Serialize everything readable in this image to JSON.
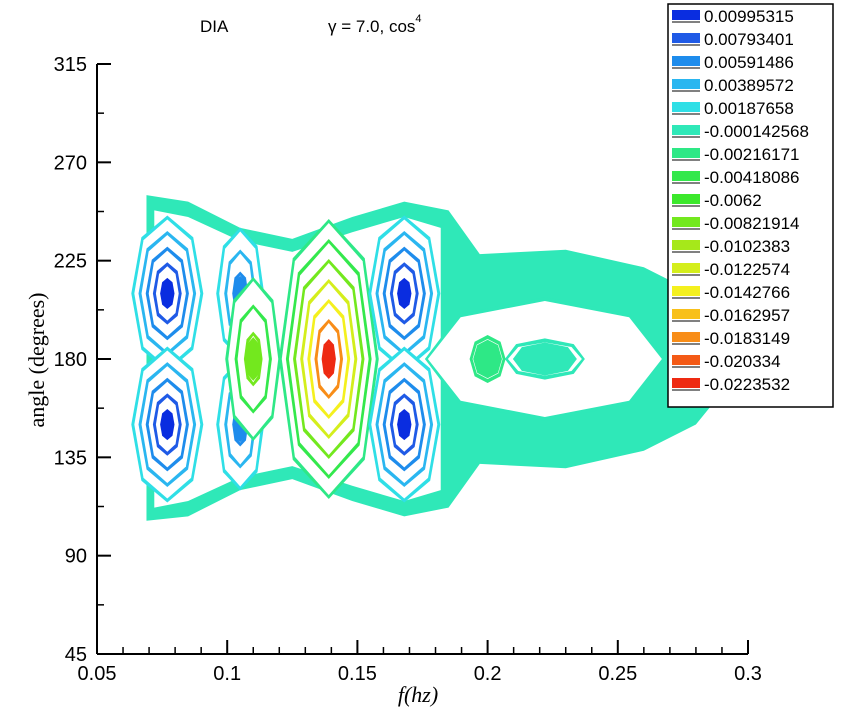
{
  "chart_data": {
    "type": "contour",
    "annotations": {
      "left": "DIA",
      "gamma_symbol": "γ",
      "gamma_text": " = 7.0, cos",
      "superscript": "4"
    },
    "xlabel": "f(hz)",
    "ylabel": "angle (degrees)",
    "xlim": [
      0.05,
      0.3
    ],
    "ylim": [
      45,
      315
    ],
    "xticks": [
      "0.05",
      "0.1",
      "0.15",
      "0.2",
      "0.25",
      "0.3"
    ],
    "yticks": [
      "45",
      "90",
      "135",
      "180",
      "225",
      "270",
      "315"
    ],
    "legend_placement": "top-right",
    "legend": [
      {
        "label": "0.00995315",
        "color": "#0a2de0"
      },
      {
        "label": "0.00793401",
        "color": "#1f5ae6"
      },
      {
        "label": "0.00591486",
        "color": "#1e8cec"
      },
      {
        "label": "0.00389572",
        "color": "#2ab6f0"
      },
      {
        "label": "0.00187658",
        "color": "#2fdfe6"
      },
      {
        "label": "-0.000142568",
        "color": "#2fe8b8"
      },
      {
        "label": "-0.00216171",
        "color": "#2ee886"
      },
      {
        "label": "-0.00418086",
        "color": "#34e84c"
      },
      {
        "label": "-0.0062",
        "color": "#3ce82c"
      },
      {
        "label": "-0.00821914",
        "color": "#73e81e"
      },
      {
        "label": "-0.0102383",
        "color": "#a6e81a"
      },
      {
        "label": "-0.0122574",
        "color": "#d4ee1c"
      },
      {
        "label": "-0.0142766",
        "color": "#f4f01e"
      },
      {
        "label": "-0.0162957",
        "color": "#f8c01a"
      },
      {
        "label": "-0.0183149",
        "color": "#f88d18"
      },
      {
        "label": "-0.020334",
        "color": "#f45a16"
      },
      {
        "label": "-0.0223532",
        "color": "#ee2a12"
      }
    ],
    "features": [
      {
        "kind": "lobe",
        "x": 0.077,
        "y": 210,
        "level": 0.0099,
        "color": "#0a2de0"
      },
      {
        "kind": "lobe",
        "x": 0.077,
        "y": 150,
        "level": 0.0099,
        "color": "#0a2de0"
      },
      {
        "kind": "lobe",
        "x": 0.105,
        "y": 210,
        "level": 0.0059,
        "color": "#1e8cec"
      },
      {
        "kind": "lobe",
        "x": 0.105,
        "y": 150,
        "level": 0.0059,
        "color": "#1e8cec"
      },
      {
        "kind": "trough",
        "x": 0.11,
        "y": 180,
        "level": -0.0082,
        "color": "#73e81e"
      },
      {
        "kind": "trough",
        "x": 0.139,
        "y": 180,
        "level": -0.0224,
        "color": "#ee2a12"
      },
      {
        "kind": "lobe",
        "x": 0.168,
        "y": 210,
        "level": 0.0099,
        "color": "#0a2de0"
      },
      {
        "kind": "lobe",
        "x": 0.168,
        "y": 150,
        "level": 0.0099,
        "color": "#0a2de0"
      },
      {
        "kind": "trough",
        "x": 0.2,
        "y": 180,
        "level": -0.0022,
        "color": "#2ee886"
      }
    ]
  }
}
